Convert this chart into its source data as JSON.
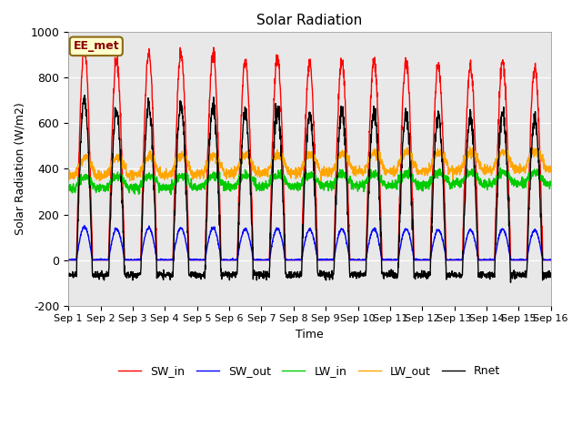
{
  "title": "Solar Radiation",
  "ylabel": "Solar Radiation (W/m2)",
  "xlabel": "Time",
  "annotation": "EE_met",
  "ylim": [
    -200,
    1000
  ],
  "background_color": "#e8e8e8",
  "series": [
    "SW_in",
    "SW_out",
    "LW_in",
    "LW_out",
    "Rnet"
  ],
  "colors": {
    "SW_in": "#ff0000",
    "SW_out": "#0000ff",
    "LW_in": "#00cc00",
    "LW_out": "#ffa500",
    "Rnet": "#000000"
  },
  "n_days": 15,
  "ticks": [
    "Sep 1",
    "Sep 2",
    "Sep 3",
    "Sep 4",
    "Sep 5",
    "Sep 6",
    "Sep 7",
    "Sep 8",
    "Sep 9",
    "Sep 10",
    "Sep 11",
    "Sep 12",
    "Sep 13",
    "Sep 14",
    "Sep 15",
    "Sep 16"
  ],
  "yticks": [
    -200,
    0,
    200,
    400,
    600,
    800,
    1000
  ]
}
